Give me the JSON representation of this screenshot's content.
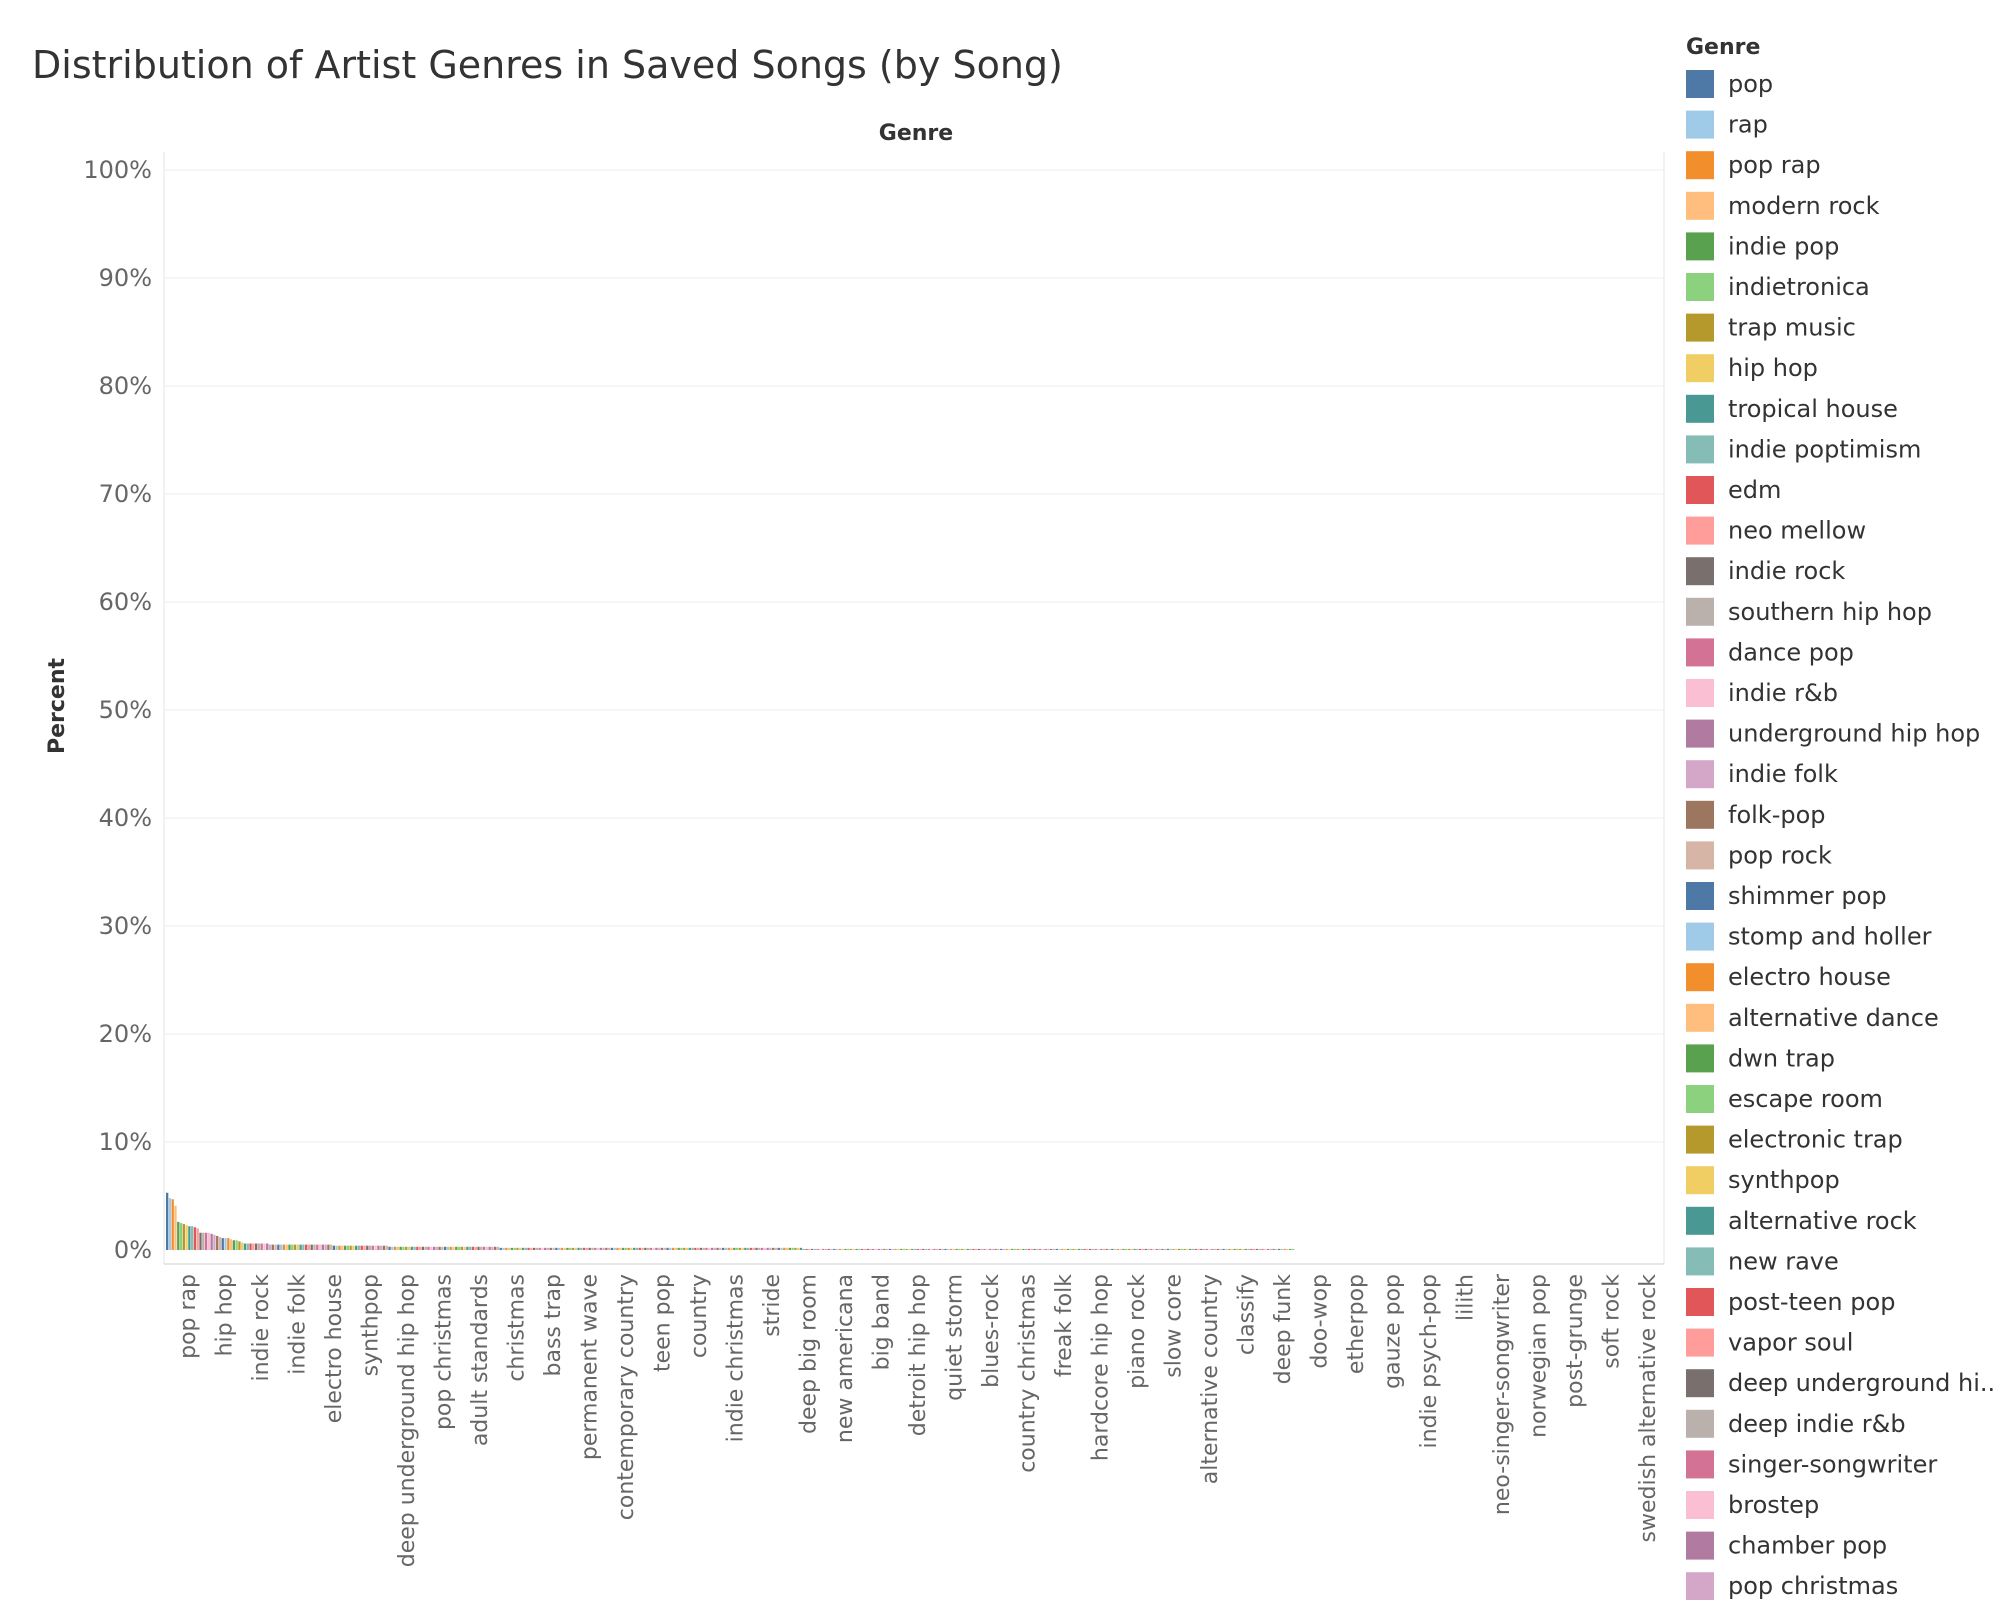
{
  "chart_data": {
    "type": "bar",
    "title": "Distribution of Artist Genres in Saved Songs (by Song)",
    "column_header": "Genre",
    "ylabel": "Percent",
    "ylim": [
      0,
      100
    ],
    "yticks": [
      "0%",
      "10%",
      "20%",
      "30%",
      "40%",
      "50%",
      "60%",
      "70%",
      "80%",
      "90%",
      "100%"
    ],
    "grid": true,
    "legend_title": "Genre",
    "legend_position": "right",
    "legend_entries": [
      {
        "name": "pop",
        "color": "#4e79a7"
      },
      {
        "name": "rap",
        "color": "#a0cbe8"
      },
      {
        "name": "pop rap",
        "color": "#f28e2b"
      },
      {
        "name": "modern rock",
        "color": "#ffbe7d"
      },
      {
        "name": "indie pop",
        "color": "#59a14f"
      },
      {
        "name": "indietronica",
        "color": "#8cd17d"
      },
      {
        "name": "trap music",
        "color": "#b6992d"
      },
      {
        "name": "hip hop",
        "color": "#f1ce63"
      },
      {
        "name": "tropical house",
        "color": "#499894"
      },
      {
        "name": "indie poptimism",
        "color": "#86bcb6"
      },
      {
        "name": "edm",
        "color": "#e15759"
      },
      {
        "name": "neo mellow",
        "color": "#ff9d9a"
      },
      {
        "name": "indie rock",
        "color": "#79706e"
      },
      {
        "name": "southern hip hop",
        "color": "#bab0ac"
      },
      {
        "name": "dance pop",
        "color": "#d37295"
      },
      {
        "name": "indie r&b",
        "color": "#fabfd2"
      },
      {
        "name": "underground hip hop",
        "color": "#b07aa1"
      },
      {
        "name": "indie folk",
        "color": "#d4a6c8"
      },
      {
        "name": "folk-pop",
        "color": "#9d7660"
      },
      {
        "name": "pop rock",
        "color": "#d7b5a6"
      },
      {
        "name": "shimmer pop",
        "color": "#4e79a7"
      },
      {
        "name": "stomp and holler",
        "color": "#a0cbe8"
      },
      {
        "name": "electro house",
        "color": "#f28e2b"
      },
      {
        "name": "alternative dance",
        "color": "#ffbe7d"
      },
      {
        "name": "dwn trap",
        "color": "#59a14f"
      },
      {
        "name": "escape room",
        "color": "#8cd17d"
      },
      {
        "name": "electronic trap",
        "color": "#b6992d"
      },
      {
        "name": "synthpop",
        "color": "#f1ce63"
      },
      {
        "name": "alternative rock",
        "color": "#499894"
      },
      {
        "name": "new rave",
        "color": "#86bcb6"
      },
      {
        "name": "post-teen pop",
        "color": "#e15759"
      },
      {
        "name": "vapor soul",
        "color": "#ff9d9a"
      },
      {
        "name": "deep underground hi..",
        "color": "#79706e"
      },
      {
        "name": "deep indie r&b",
        "color": "#bab0ac"
      },
      {
        "name": "singer-songwriter",
        "color": "#d37295"
      },
      {
        "name": "brostep",
        "color": "#fabfd2"
      },
      {
        "name": "chamber pop",
        "color": "#b07aa1"
      },
      {
        "name": "pop christmas",
        "color": "#d4a6c8"
      }
    ],
    "x_tick_labels": [
      "pop rap",
      "hip hop",
      "indie rock",
      "indie folk",
      "electro house",
      "synthpop",
      "deep underground hip hop",
      "pop christmas",
      "adult standards",
      "christmas",
      "bass trap",
      "permanent wave",
      "contemporary country",
      "teen pop",
      "country",
      "indie christmas",
      "stride",
      "deep big room",
      "new americana",
      "big band",
      "detroit hip hop",
      "quiet storm",
      "blues-rock",
      "country christmas",
      "freak folk",
      "hardcore hip hop",
      "piano rock",
      "slow core",
      "alternative country",
      "classify",
      "deep funk",
      "doo-wop",
      "etherpop",
      "gauze pop",
      "indie psych-pop",
      "lilith",
      "neo-singer-songwriter",
      "norwegian pop",
      "post-grunge",
      "soft rock",
      "swedish alternative rock"
    ],
    "color_cycle": [
      "#4e79a7",
      "#a0cbe8",
      "#f28e2b",
      "#ffbe7d",
      "#59a14f",
      "#8cd17d",
      "#b6992d",
      "#f1ce63",
      "#499894",
      "#86bcb6",
      "#e15759",
      "#ff9d9a",
      "#79706e",
      "#bab0ac",
      "#d37295",
      "#fabfd2",
      "#b07aa1",
      "#d4a6c8",
      "#9d7660",
      "#d7b5a6"
    ],
    "values": [
      5.3,
      4.8,
      4.7,
      4.1,
      2.6,
      2.5,
      2.4,
      2.3,
      2.2,
      2.2,
      2.1,
      2.0,
      1.6,
      1.6,
      1.6,
      1.6,
      1.5,
      1.4,
      1.3,
      1.2,
      1.1,
      1.1,
      1.1,
      1.0,
      0.9,
      0.9,
      0.8,
      0.7,
      0.6,
      0.6,
      0.6,
      0.6,
      0.6,
      0.6,
      0.6,
      0.6,
      0.6,
      0.5,
      0.5,
      0.5,
      0.5,
      0.5,
      0.5,
      0.5,
      0.5,
      0.5,
      0.5,
      0.5,
      0.5,
      0.5,
      0.5,
      0.5,
      0.5,
      0.5,
      0.5,
      0.5,
      0.5,
      0.5,
      0.5,
      0.5,
      0.4,
      0.4,
      0.4,
      0.4,
      0.4,
      0.4,
      0.4,
      0.4,
      0.4,
      0.4,
      0.4,
      0.4,
      0.4,
      0.4,
      0.4,
      0.4,
      0.4,
      0.4,
      0.4,
      0.4,
      0.3,
      0.3,
      0.3,
      0.3,
      0.3,
      0.3,
      0.3,
      0.3,
      0.3,
      0.3,
      0.3,
      0.3,
      0.3,
      0.3,
      0.3,
      0.3,
      0.3,
      0.3,
      0.3,
      0.3,
      0.3,
      0.3,
      0.3,
      0.3,
      0.3,
      0.3,
      0.3,
      0.3,
      0.3,
      0.3,
      0.3,
      0.3,
      0.3,
      0.3,
      0.3,
      0.3,
      0.3,
      0.3,
      0.3,
      0.3,
      0.2,
      0.2,
      0.2,
      0.2,
      0.2,
      0.2,
      0.2,
      0.2,
      0.2,
      0.2,
      0.2,
      0.2,
      0.2,
      0.2,
      0.2,
      0.2,
      0.2,
      0.2,
      0.2,
      0.2,
      0.2,
      0.2,
      0.2,
      0.2,
      0.2,
      0.2,
      0.2,
      0.2,
      0.2,
      0.2,
      0.2,
      0.2,
      0.2,
      0.2,
      0.2,
      0.2,
      0.2,
      0.2,
      0.2,
      0.2,
      0.2,
      0.2,
      0.2,
      0.2,
      0.2,
      0.2,
      0.2,
      0.2,
      0.2,
      0.2,
      0.2,
      0.2,
      0.2,
      0.2,
      0.2,
      0.2,
      0.2,
      0.2,
      0.2,
      0.2,
      0.2,
      0.2,
      0.2,
      0.2,
      0.2,
      0.2,
      0.2,
      0.2,
      0.2,
      0.2,
      0.2,
      0.2,
      0.2,
      0.2,
      0.2,
      0.2,
      0.2,
      0.2,
      0.2,
      0.2,
      0.2,
      0.2,
      0.2,
      0.2,
      0.2,
      0.2,
      0.2,
      0.2,
      0.2,
      0.2,
      0.2,
      0.2,
      0.2,
      0.2,
      0.2,
      0.2,
      0.2,
      0.2,
      0.2,
      0.2,
      0.2,
      0.2,
      0.2,
      0.2,
      0.2,
      0.2,
      0.2,
      0.2,
      0.2,
      0.1,
      0.1,
      0.1,
      0.1,
      0.1,
      0.1,
      0.1,
      0.1,
      0.1,
      0.1,
      0.1,
      0.1,
      0.1,
      0.1,
      0.1,
      0.1,
      0.1,
      0.1,
      0.1,
      0.1,
      0.1,
      0.1,
      0.1,
      0.1,
      0.1,
      0.1,
      0.1,
      0.1,
      0.1,
      0.1,
      0.1,
      0.1,
      0.1,
      0.1,
      0.1,
      0.1,
      0.1,
      0.1,
      0.1,
      0.1,
      0.1,
      0.1,
      0.1,
      0.1,
      0.1,
      0.1,
      0.1,
      0.1,
      0.1,
      0.1,
      0.1,
      0.1,
      0.1,
      0.1,
      0.1,
      0.1,
      0.1,
      0.1,
      0.1,
      0.1,
      0.1,
      0.1,
      0.1,
      0.1,
      0.1,
      0.1,
      0.1,
      0.1,
      0.1,
      0.1,
      0.1,
      0.1,
      0.1,
      0.1,
      0.1,
      0.1,
      0.1,
      0.1,
      0.1,
      0.1,
      0.1,
      0.1,
      0.1,
      0.1,
      0.1,
      0.1,
      0.1,
      0.1,
      0.1,
      0.1,
      0.1,
      0.1,
      0.1,
      0.1,
      0.1,
      0.1,
      0.1,
      0.1,
      0.1,
      0.1,
      0.1,
      0.1,
      0.1,
      0.1,
      0.1,
      0.1,
      0.1,
      0.1,
      0.1,
      0.1,
      0.1,
      0.1,
      0.1,
      0.1,
      0.1,
      0.1,
      0.1,
      0.1,
      0.1,
      0.1,
      0.1,
      0.1,
      0.1,
      0.1,
      0.1,
      0.1,
      0.1,
      0.1,
      0.1,
      0.1,
      0.1,
      0.1,
      0.1,
      0.1,
      0.1,
      0.1,
      0.1,
      0.1,
      0.1,
      0.1,
      0.1,
      0.1,
      0.1,
      0.1,
      0.1,
      0.1,
      0.1,
      0.1,
      0.1,
      0.1,
      0.1,
      0.1,
      0.1,
      0.1,
      0.1,
      0.1,
      0.1,
      0.1,
      0.1,
      0.1,
      0.1,
      0.1,
      0.1,
      0.1,
      0.1,
      0.1,
      0.1,
      0.1,
      0.1,
      0.1,
      0.1,
      0.1,
      0.1,
      0.1,
      0.1,
      0.1,
      0.1
    ]
  }
}
